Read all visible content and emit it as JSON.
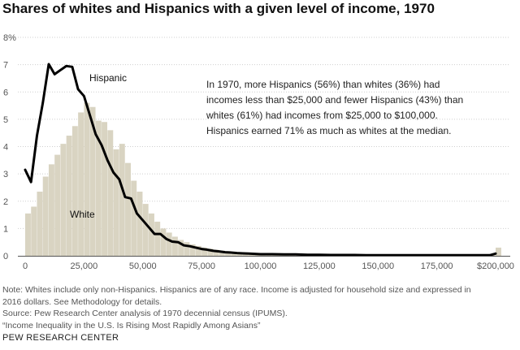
{
  "chart_data": {
    "type": "bar",
    "title": "Shares of whites and Hispanics with a given level of income, 1970",
    "xlim": [
      0,
      200000
    ],
    "ylim": [
      0,
      8
    ],
    "bin_width": 2500,
    "y_tick_labels": [
      "0",
      "1",
      "2",
      "3",
      "4",
      "5",
      "6",
      "7",
      "8%"
    ],
    "y_ticks": [
      0,
      1,
      2,
      3,
      4,
      5,
      6,
      7,
      8
    ],
    "x_tick_labels": [
      "0",
      "25,000",
      "50,000",
      "75,000",
      "100,000",
      "125,000",
      "150,000",
      "175,000",
      "$200,000"
    ],
    "x_ticks": [
      0,
      25000,
      50000,
      75000,
      100000,
      125000,
      150000,
      175000,
      200000
    ],
    "grid": "horizontal dotted",
    "series": [
      {
        "name": "White",
        "type": "bar",
        "color": "#d9d4c2",
        "values": [
          1.55,
          1.8,
          2.35,
          2.9,
          3.35,
          3.7,
          4.1,
          4.4,
          4.75,
          5.25,
          5.6,
          5.45,
          4.95,
          4.9,
          4.6,
          3.9,
          4.1,
          3.4,
          2.75,
          2.35,
          1.9,
          1.55,
          1.25,
          1.0,
          0.85,
          0.7,
          0.58,
          0.5,
          0.42,
          0.36,
          0.3,
          0.26,
          0.22,
          0.19,
          0.17,
          0.15,
          0.13,
          0.12,
          0.1,
          0.09,
          0.08,
          0.07,
          0.07,
          0.06,
          0.06,
          0.05,
          0.05,
          0.05,
          0.04,
          0.04,
          0.04,
          0.04,
          0.03,
          0.03,
          0.03,
          0.03,
          0.03,
          0.03,
          0.02,
          0.02,
          0.02,
          0.02,
          0.02,
          0.02,
          0.02,
          0.02,
          0.02,
          0.02,
          0.02,
          0.02,
          0.02,
          0.02,
          0.02,
          0.02,
          0.02,
          0.02,
          0.02,
          0.02,
          0.02,
          0.02,
          0.3
        ]
      },
      {
        "name": "Hispanic",
        "type": "line",
        "color": "#000000",
        "x": [
          0,
          2500,
          5000,
          7500,
          10000,
          12500,
          15000,
          17500,
          20000,
          22500,
          25000,
          27500,
          30000,
          32500,
          35000,
          37500,
          40000,
          42500,
          45000,
          47500,
          50000,
          52500,
          55000,
          57500,
          60000,
          62500,
          65000,
          67500,
          70000,
          72500,
          75000,
          77500,
          80000,
          82500,
          85000,
          87500,
          90000,
          92500,
          95000,
          97500,
          100000,
          105000,
          110000,
          115000,
          120000,
          125000,
          130000,
          135000,
          140000,
          145000,
          150000,
          160000,
          170000,
          180000,
          190000,
          197500,
          200000
        ],
        "values": [
          3.15,
          2.7,
          4.4,
          5.6,
          7.02,
          6.65,
          6.8,
          6.95,
          6.92,
          6.1,
          5.85,
          5.15,
          4.45,
          4.05,
          3.5,
          3.05,
          2.8,
          2.15,
          2.1,
          1.55,
          1.3,
          1.05,
          0.8,
          0.8,
          0.62,
          0.52,
          0.5,
          0.38,
          0.35,
          0.3,
          0.25,
          0.22,
          0.18,
          0.16,
          0.13,
          0.12,
          0.1,
          0.09,
          0.08,
          0.07,
          0.06,
          0.06,
          0.05,
          0.05,
          0.04,
          0.04,
          0.03,
          0.03,
          0.03,
          0.02,
          0.02,
          0.02,
          0.02,
          0.02,
          0.02,
          0.02,
          0.08
        ]
      }
    ],
    "annotation": [
      "In 1970, more Hispanics (56%) than whites (36%) had",
      "incomes less than $25,000 and fewer Hispanics (43%) than",
      "whites (61%) had incomes from $25,000 to $100,000.",
      "Hispanics earned 71% as much as whites at the median."
    ]
  },
  "notes": [
    "Note: Whites include only non-Hispanics. Hispanics are of any race. Income is adjusted for household size and expressed in",
    "2016 dollars. See Methodology for details.",
    "Source: Pew Research Center analysis of 1970 decennial census (IPUMS).",
    "“Income Inequality in the U.S. Is Rising Most Rapidly Among Asians”"
  ],
  "brand": "PEW RESEARCH CENTER"
}
